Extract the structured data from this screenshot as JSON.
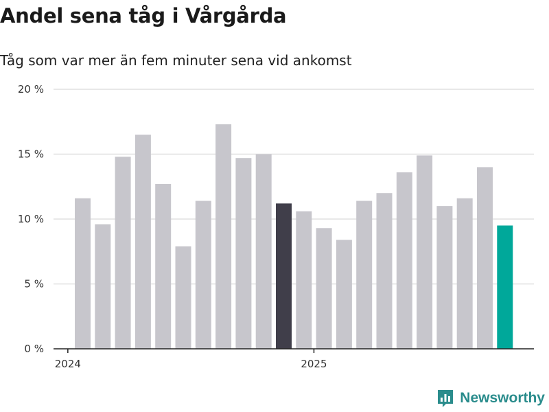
{
  "title": "Andel sena tåg i Vårgårda",
  "subtitle": "Tåg som var mer än fem minuter sena vid ankomst",
  "colors": {
    "bar_default": "#c7c6cc",
    "bar_highlight": "#403e4a",
    "bar_latest": "#00a89a",
    "grid": "#e0e0e0",
    "axis": "#222222",
    "brand": "#2a8c8c"
  },
  "logo": {
    "text": "Newsworthy",
    "icon": "bar-chart-logo-icon"
  },
  "chart_data": {
    "type": "bar",
    "title": "Andel sena tåg i Vårgårda",
    "subtitle": "Tåg som var mer än fem minuter sena vid ankomst",
    "xlabel": "",
    "ylabel": "",
    "ylim": [
      0,
      20
    ],
    "yticks": [
      0,
      5,
      10,
      15,
      20
    ],
    "ytick_labels": [
      "0 %",
      "5 %",
      "10 %",
      "15 %",
      "20 %"
    ],
    "grid": true,
    "x_tick_labels": [
      {
        "label": "2024",
        "index": -0.5
      },
      {
        "label": "2025",
        "index": 11.5
      }
    ],
    "categories": [
      "2024-01",
      "2024-02",
      "2024-03",
      "2024-04",
      "2024-05",
      "2024-06",
      "2024-07",
      "2024-08",
      "2024-09",
      "2024-10",
      "2024-11",
      "2024-12",
      "2025-01",
      "2025-02",
      "2025-03",
      "2025-04",
      "2025-05",
      "2025-06",
      "2025-07",
      "2025-08",
      "2025-09",
      "2025-10"
    ],
    "values": [
      11.6,
      9.6,
      14.8,
      16.5,
      12.7,
      7.9,
      11.4,
      17.3,
      14.7,
      15.0,
      11.2,
      10.6,
      9.3,
      8.4,
      11.4,
      12.0,
      13.6,
      14.9,
      11.0,
      11.6,
      14.0,
      9.5
    ],
    "highlight": {
      "10": "bar_highlight",
      "21": "bar_latest"
    }
  }
}
